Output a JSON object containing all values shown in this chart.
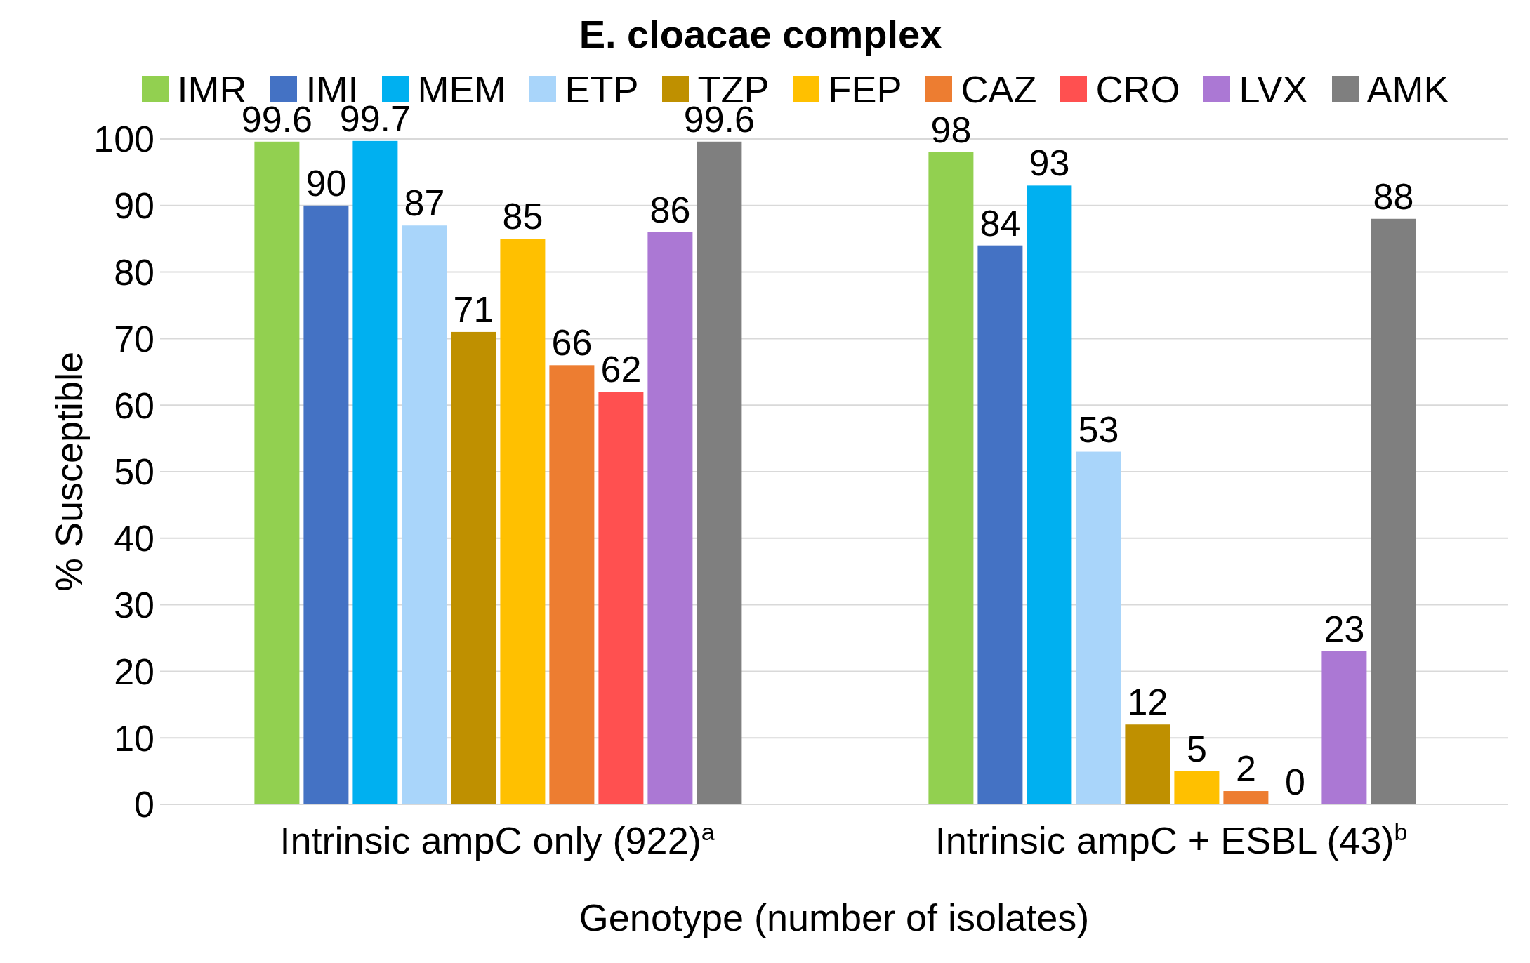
{
  "chart_data": {
    "type": "bar",
    "title": "E. cloacae complex",
    "xlabel": "Genotype (number of isolates)",
    "ylabel": "% Susceptible",
    "categories": [
      "Intrinsic ampC only (922)$^{a}$",
      "Intrinsic ampC + ESBL (43)$^{b}$"
    ],
    "series": [
      {
        "name": "IMR",
        "color": "#92d050",
        "values": [
          99.6,
          98
        ]
      },
      {
        "name": "IMI",
        "color": "#4472c4",
        "values": [
          90,
          84
        ]
      },
      {
        "name": "MEM",
        "color": "#00b0f0",
        "values": [
          99.7,
          93
        ]
      },
      {
        "name": "ETP",
        "color": "#a9d5fa",
        "values": [
          87,
          53
        ]
      },
      {
        "name": "TZP",
        "color": "#bf9000",
        "values": [
          71,
          12
        ]
      },
      {
        "name": "FEP",
        "color": "#ffc000",
        "values": [
          85,
          5
        ]
      },
      {
        "name": "CAZ",
        "color": "#ed7d31",
        "values": [
          66,
          2
        ]
      },
      {
        "name": "CRO",
        "color": "#ff5050",
        "values": [
          62,
          0
        ]
      },
      {
        "name": "LVX",
        "color": "#ab78d4",
        "values": [
          86,
          23
        ]
      },
      {
        "name": "AMK",
        "color": "#7f7f7f",
        "values": [
          99.6,
          88
        ]
      }
    ],
    "ylim": [
      0,
      100
    ],
    "yticks": [
      0,
      10,
      20,
      30,
      40,
      50,
      60,
      70,
      80,
      90,
      100
    ],
    "grid": "y",
    "legend": "top",
    "data_labels": true
  }
}
